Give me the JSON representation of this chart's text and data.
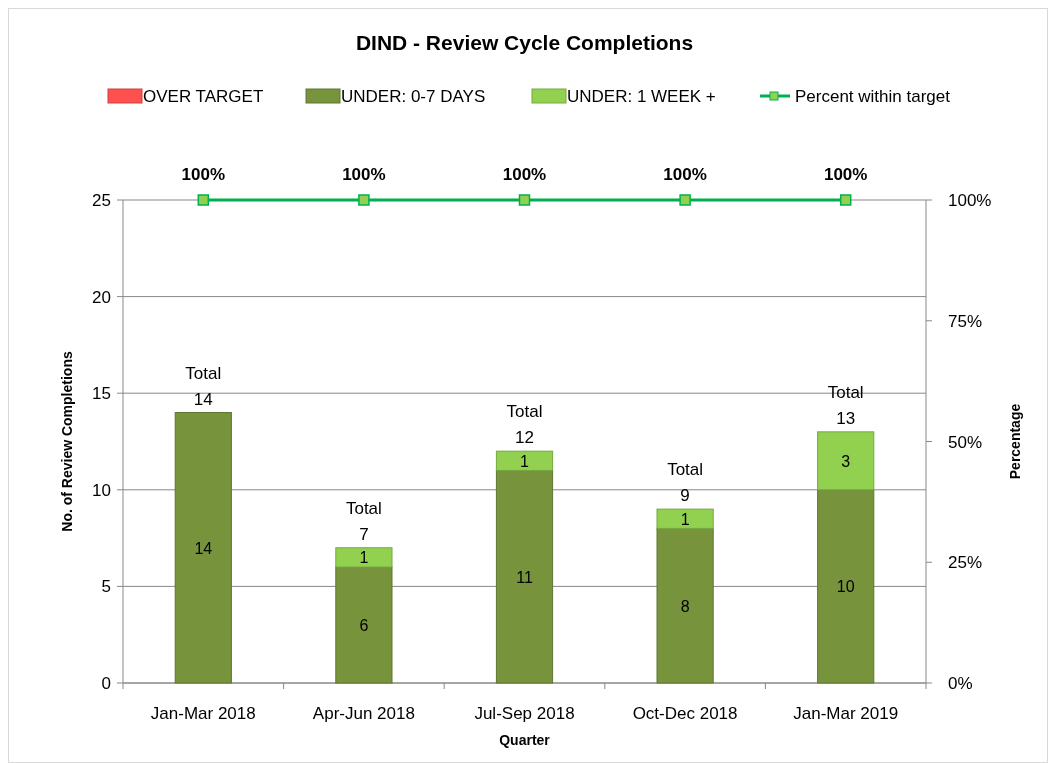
{
  "chart_data": {
    "type": "bar",
    "title": "DIND - Review Cycle Completions",
    "xlabel": "Quarter",
    "ylabel": "No. of Review Completions",
    "y2label": "Percentage",
    "categories": [
      "Jan-Mar 2018",
      "Apr-Jun 2018",
      "Jul-Sep 2018",
      "Oct-Dec 2018",
      "Jan-Mar 2019"
    ],
    "stacked": true,
    "ylim": [
      0,
      25
    ],
    "yticks": [
      0,
      5,
      10,
      15,
      20,
      25
    ],
    "y2lim": [
      0,
      100
    ],
    "y2ticks": [
      {
        "value": 0,
        "label": "0%"
      },
      {
        "value": 25,
        "label": "25%"
      },
      {
        "value": 50,
        "label": "50%"
      },
      {
        "value": 75,
        "label": "75%"
      },
      {
        "value": 100,
        "label": "100%"
      }
    ],
    "grid": "y",
    "legend": "top",
    "totals": [
      "Total 14",
      "Total 7",
      "Total 12",
      "Total 9",
      "Total 13"
    ],
    "series": [
      {
        "name": "OVER TARGET",
        "color": "#ff5050",
        "values": [
          0,
          0,
          0,
          0,
          0
        ],
        "value_labels": [
          null,
          null,
          null,
          null,
          null
        ]
      },
      {
        "name": "UNDER: 0-7 DAYS",
        "color": "#77933c",
        "values": [
          14,
          6,
          11,
          8,
          10
        ],
        "value_labels": [
          "14",
          "6",
          "11",
          "8",
          "10"
        ]
      },
      {
        "name": "UNDER: 1 WEEK +",
        "color": "#92d050",
        "values": [
          0,
          1,
          1,
          1,
          3
        ],
        "value_labels": [
          null,
          "1",
          "1",
          "1",
          "3"
        ]
      },
      {
        "name": "Percent within target",
        "type": "line",
        "axis": "y2",
        "color": "#00b050",
        "marker": "square",
        "values": [
          100,
          100,
          100,
          100,
          100
        ],
        "value_labels": [
          "100%",
          "100%",
          "100%",
          "100%",
          "100%"
        ]
      }
    ]
  }
}
